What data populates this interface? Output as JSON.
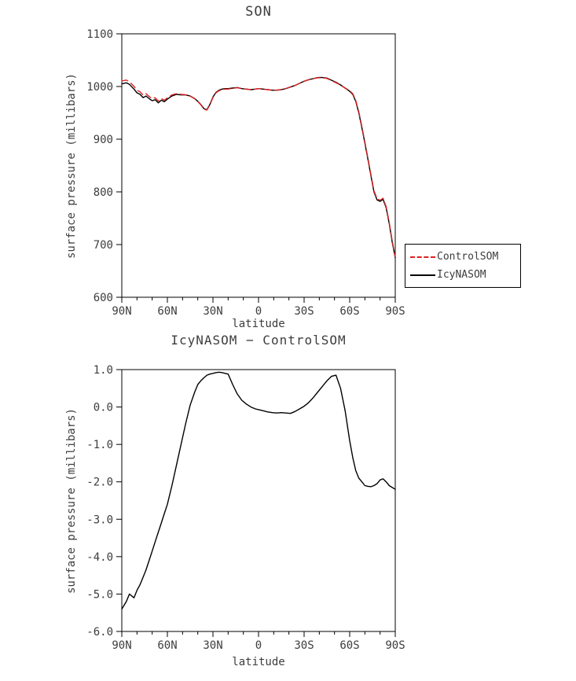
{
  "figure": {
    "background": "#ffffff",
    "axis_color": "#000000",
    "text_color": "#3d3d3d"
  },
  "chart_data": [
    {
      "type": "line",
      "title": "SON",
      "xlabel": "latitude",
      "ylabel": "surface pressure (millibars)",
      "ylim": [
        600,
        1100
      ],
      "y_tick_values": [
        1100,
        1000,
        900,
        800,
        700,
        600
      ],
      "y_tick_labels": [
        "1100",
        "1000",
        "900",
        "800",
        "700",
        "600"
      ],
      "x_tick_lats": [
        90,
        60,
        30,
        0,
        -30,
        -60,
        -90
      ],
      "x_tick_labels": [
        "90N",
        "60N",
        "30N",
        "0",
        "30S",
        "60S",
        "90S"
      ],
      "x_minor_step": 10,
      "legend_position": "right-bottom",
      "grid": false,
      "lats": [
        90,
        87,
        85,
        82,
        80,
        78,
        76,
        74,
        72,
        70,
        68,
        66,
        64,
        62,
        60,
        57,
        54,
        51,
        48,
        45,
        42,
        40,
        38,
        36,
        34,
        32,
        30,
        28,
        26,
        24,
        22,
        20,
        17,
        14,
        11,
        8,
        5,
        2,
        0,
        -3,
        -6,
        -9,
        -12,
        -15,
        -18,
        -21,
        -24,
        -27,
        -30,
        -33,
        -36,
        -39,
        -42,
        -45,
        -48,
        -51,
        -54,
        -57,
        -60,
        -62,
        -64,
        -66,
        -68,
        -70,
        -72,
        -74,
        -76,
        -78,
        -80,
        -82,
        -84,
        -86,
        -88,
        -90
      ],
      "series": [
        {
          "name": "ControlSOM",
          "color": "#e02020",
          "dashed": true,
          "values": [
            1010.4,
            1012.2,
            1009.0,
            1000.1,
            992.9,
            989.8,
            983.6,
            986.4,
            981.1,
            976.9,
            978.6,
            972.4,
            977.1,
            973.9,
            978.6,
            984.1,
            986.6,
            985.0,
            984.5,
            982.0,
            976.6,
            971.4,
            965.3,
            957.2,
            955.2,
            965.1,
            979.1,
            988.1,
            992.1,
            994.1,
            995.1,
            995.1,
            996.4,
            997.7,
            995.8,
            994.9,
            994.0,
            995.1,
            996.1,
            995.1,
            994.1,
            993.2,
            993.2,
            994.2,
            996.2,
            999.2,
            1002.1,
            1006.1,
            1010.0,
            1012.9,
            1014.8,
            1016.6,
            1016.5,
            1015.3,
            1011.2,
            1007.2,
            1002.5,
            997.1,
            991.9,
            986.4,
            973.7,
            951.9,
            924.0,
            895.1,
            864.1,
            832.1,
            802.1,
            787.1,
            784.0,
            787.9,
            772.0,
            742.1,
            707.2,
            677.2
          ]
        },
        {
          "name": "IcyNASOM",
          "color": "#000000",
          "dashed": false,
          "values": [
            1005,
            1007,
            1004,
            995,
            988,
            985,
            979,
            982,
            977,
            973,
            975,
            969,
            974,
            971,
            976,
            982,
            985,
            984,
            984,
            982,
            977,
            972,
            966,
            958,
            956,
            966,
            980,
            989,
            993,
            995,
            996,
            996,
            997,
            998,
            996,
            995,
            994,
            995,
            996,
            995,
            994,
            993,
            993,
            994,
            996,
            999,
            1002,
            1006,
            1010,
            1013,
            1015,
            1017,
            1017,
            1016,
            1012,
            1008,
            1003,
            997,
            991,
            985,
            972,
            950,
            922,
            893,
            862,
            830,
            800,
            785,
            782,
            786,
            770,
            740,
            705,
            675
          ]
        }
      ]
    },
    {
      "type": "line",
      "title": "IcyNASOM − ControlSOM",
      "xlabel": "latitude",
      "ylabel": "surface pressure (millibars)",
      "ylim": [
        -6.0,
        1.0
      ],
      "y_tick_values": [
        1.0,
        0.0,
        -1.0,
        -2.0,
        -3.0,
        -4.0,
        -5.0,
        -6.0
      ],
      "y_tick_labels": [
        "1.0",
        "0.0",
        "-1.0",
        "-2.0",
        "-3.0",
        "-4.0",
        "-5.0",
        "-6.0"
      ],
      "x_tick_lats": [
        90,
        60,
        30,
        0,
        -30,
        -60,
        -90
      ],
      "x_tick_labels": [
        "90N",
        "60N",
        "30N",
        "0",
        "30S",
        "60S",
        "90S"
      ],
      "x_minor_step": 10,
      "grid": false,
      "lats": [
        90,
        87,
        85,
        82,
        80,
        78,
        76,
        74,
        72,
        70,
        68,
        66,
        64,
        62,
        60,
        57,
        54,
        51,
        48,
        45,
        42,
        40,
        38,
        36,
        34,
        32,
        30,
        28,
        26,
        24,
        22,
        20,
        17,
        14,
        11,
        8,
        5,
        2,
        0,
        -3,
        -6,
        -9,
        -12,
        -15,
        -18,
        -21,
        -24,
        -27,
        -30,
        -33,
        -36,
        -39,
        -42,
        -45,
        -48,
        -51,
        -54,
        -57,
        -60,
        -62,
        -64,
        -66,
        -68,
        -70,
        -72,
        -74,
        -76,
        -78,
        -80,
        -82,
        -84,
        -86,
        -88,
        -90
      ],
      "series": [
        {
          "name": "IcyNASOM − ControlSOM",
          "color": "#000000",
          "dashed": false,
          "values": [
            -5.4,
            -5.2,
            -5.0,
            -5.1,
            -4.9,
            -4.75,
            -4.55,
            -4.35,
            -4.1,
            -3.85,
            -3.6,
            -3.35,
            -3.1,
            -2.85,
            -2.6,
            -2.1,
            -1.55,
            -1.0,
            -0.45,
            0.05,
            0.4,
            0.6,
            0.7,
            0.78,
            0.85,
            0.88,
            0.9,
            0.92,
            0.93,
            0.92,
            0.9,
            0.88,
            0.6,
            0.35,
            0.18,
            0.08,
            0.0,
            -0.05,
            -0.07,
            -0.1,
            -0.13,
            -0.15,
            -0.16,
            -0.15,
            -0.16,
            -0.17,
            -0.12,
            -0.05,
            0.02,
            0.12,
            0.25,
            0.4,
            0.55,
            0.7,
            0.82,
            0.85,
            0.5,
            -0.1,
            -0.9,
            -1.35,
            -1.7,
            -1.9,
            -2.0,
            -2.1,
            -2.12,
            -2.13,
            -2.1,
            -2.05,
            -1.95,
            -1.92,
            -2.0,
            -2.1,
            -2.15,
            -2.2
          ]
        }
      ]
    }
  ]
}
